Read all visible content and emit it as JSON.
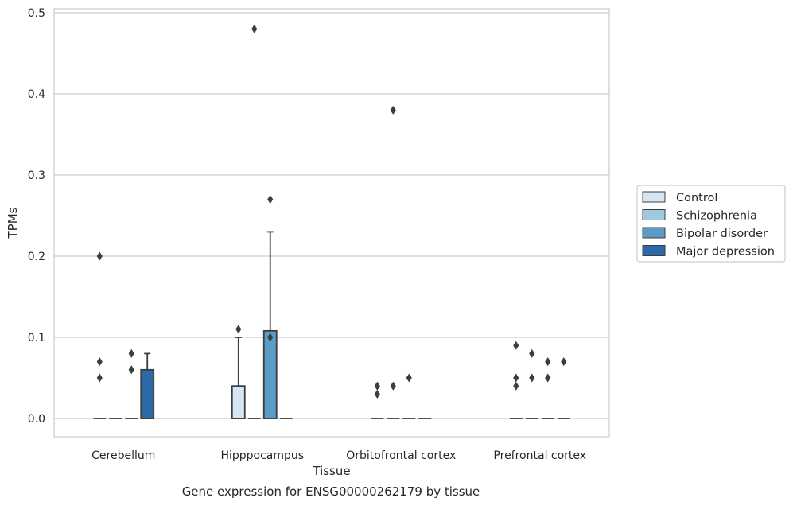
{
  "chart_data": {
    "type": "box",
    "title": "Gene expression for ENSG00000262179 by tissue",
    "xlabel": "Tissue",
    "ylabel": "TPMs",
    "ylim": [
      -0.023,
      0.505
    ],
    "yticks": [
      "0.0",
      "0.1",
      "0.2",
      "0.3",
      "0.4",
      "0.5"
    ],
    "categories": [
      "Cerebellum",
      "Hipppocampus",
      "Orbitofrontal cortex",
      "Prefrontal cortex"
    ],
    "grid": true,
    "legend_position": "right",
    "series": [
      {
        "name": "Control",
        "color": "#d6e6f4",
        "boxes": [
          {
            "q1": 0,
            "median": 0,
            "q3": 0,
            "whisker_low": 0,
            "whisker_high": 0,
            "outliers": [
              0.05,
              0.07,
              0.2
            ]
          },
          {
            "q1": 0,
            "median": 0,
            "q3": 0.04,
            "whisker_low": 0,
            "whisker_high": 0.1,
            "outliers": [
              0.11
            ]
          },
          {
            "q1": 0,
            "median": 0,
            "q3": 0,
            "whisker_low": 0,
            "whisker_high": 0,
            "outliers": [
              0.03,
              0.04
            ]
          },
          {
            "q1": 0,
            "median": 0,
            "q3": 0,
            "whisker_low": 0,
            "whisker_high": 0,
            "outliers": [
              0.04,
              0.05,
              0.09
            ]
          }
        ]
      },
      {
        "name": "Schizophrenia",
        "color": "#9fc9df",
        "boxes": [
          {
            "q1": 0,
            "median": 0,
            "q3": 0,
            "whisker_low": 0,
            "whisker_high": 0,
            "outliers": []
          },
          {
            "q1": 0,
            "median": 0,
            "q3": 0,
            "whisker_low": 0,
            "whisker_high": 0,
            "outliers": [
              0.48
            ]
          },
          {
            "q1": 0,
            "median": 0,
            "q3": 0,
            "whisker_low": 0,
            "whisker_high": 0,
            "outliers": [
              0.04,
              0.38
            ]
          },
          {
            "q1": 0,
            "median": 0,
            "q3": 0,
            "whisker_low": 0,
            "whisker_high": 0,
            "outliers": [
              0.05,
              0.08
            ]
          }
        ]
      },
      {
        "name": "Bipolar disorder",
        "color": "#5b9bc8",
        "boxes": [
          {
            "q1": 0,
            "median": 0,
            "q3": 0,
            "whisker_low": 0,
            "whisker_high": 0,
            "outliers": [
              0.06,
              0.08
            ]
          },
          {
            "q1": 0,
            "median": 0,
            "q3": 0.108,
            "whisker_low": 0,
            "whisker_high": 0.23,
            "outliers": [
              0.1,
              0.27
            ]
          },
          {
            "q1": 0,
            "median": 0,
            "q3": 0,
            "whisker_low": 0,
            "whisker_high": 0,
            "outliers": [
              0.05
            ]
          },
          {
            "q1": 0,
            "median": 0,
            "q3": 0,
            "whisker_low": 0,
            "whisker_high": 0,
            "outliers": [
              0.05,
              0.07
            ]
          }
        ]
      },
      {
        "name": "Major depression",
        "color": "#2b6aa6",
        "boxes": [
          {
            "q1": 0,
            "median": 0,
            "q3": 0.06,
            "whisker_low": 0,
            "whisker_high": 0.08,
            "outliers": []
          },
          {
            "q1": 0,
            "median": 0,
            "q3": 0,
            "whisker_low": 0,
            "whisker_high": 0,
            "outliers": []
          },
          {
            "q1": 0,
            "median": 0,
            "q3": 0,
            "whisker_low": 0,
            "whisker_high": 0,
            "outliers": []
          },
          {
            "q1": 0,
            "median": 0,
            "q3": 0,
            "whisker_low": 0,
            "whisker_high": 0,
            "outliers": [
              0.07
            ]
          }
        ]
      }
    ]
  }
}
